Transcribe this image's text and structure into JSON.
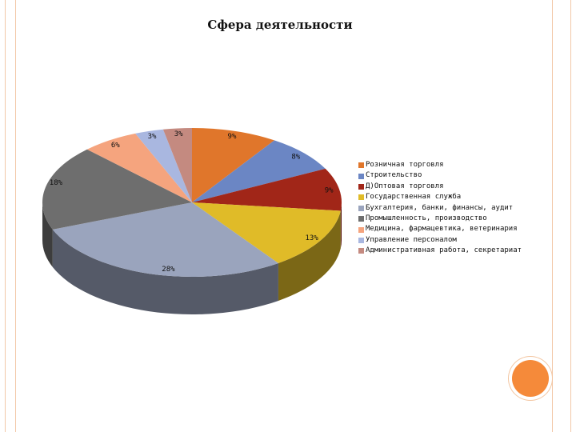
{
  "chart_data": {
    "type": "pie",
    "title": "Сфера деятельности",
    "categories": [
      "Розничная торговля",
      "Строительство",
      "Д)Оптовая торговля",
      "Государственная служба",
      "Бухгалтерия, банки, финансы, аудит",
      "Промышленность, производство",
      "Медицина, фармацевтика, ветеринария",
      "Управление персоналом",
      "Административная работа, секретариат"
    ],
    "values": [
      9,
      8,
      9,
      13,
      28,
      18,
      6,
      3,
      3
    ],
    "data_labels": [
      "9%",
      "8%",
      "9%",
      "13%",
      "28%",
      "18%",
      "6%",
      "3%",
      "3%"
    ],
    "colors": [
      "#e0762b",
      "#6b86c4",
      "#a12618",
      "#e0bb28",
      "#9aa4bd",
      "#6e6e6e",
      "#f5a47e",
      "#a9b7e0",
      "#c48a80"
    ],
    "legend_position": "right",
    "style": "3d"
  }
}
